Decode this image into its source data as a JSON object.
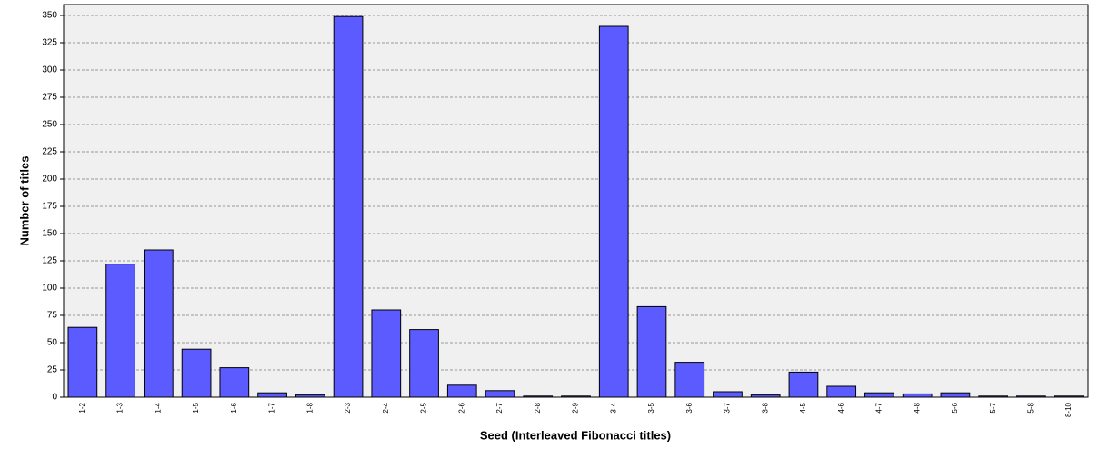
{
  "chart_data": {
    "type": "bar",
    "xlabel": "Seed (Interleaved Fibonacci titles)",
    "ylabel": "Number of titles",
    "categories": [
      "1-2",
      "1-3",
      "1-4",
      "1-5",
      "1-6",
      "1-7",
      "1-8",
      "2-3",
      "2-4",
      "2-5",
      "2-6",
      "2-7",
      "2-8",
      "2-9",
      "3-4",
      "3-5",
      "3-6",
      "3-7",
      "3-8",
      "4-5",
      "4-6",
      "4-7",
      "4-8",
      "5-6",
      "5-7",
      "5-8",
      "8-10"
    ],
    "values": [
      64,
      122,
      135,
      44,
      27,
      4,
      2,
      349,
      80,
      62,
      11,
      6,
      1,
      1,
      340,
      83,
      32,
      5,
      2,
      23,
      10,
      4,
      3,
      4,
      1,
      1,
      1
    ],
    "color": "#5b5bff",
    "ylim": [
      0,
      360
    ],
    "yticks": [
      0,
      25,
      50,
      75,
      100,
      125,
      150,
      175,
      200,
      225,
      250,
      275,
      300,
      325,
      350
    ],
    "grid": true
  }
}
